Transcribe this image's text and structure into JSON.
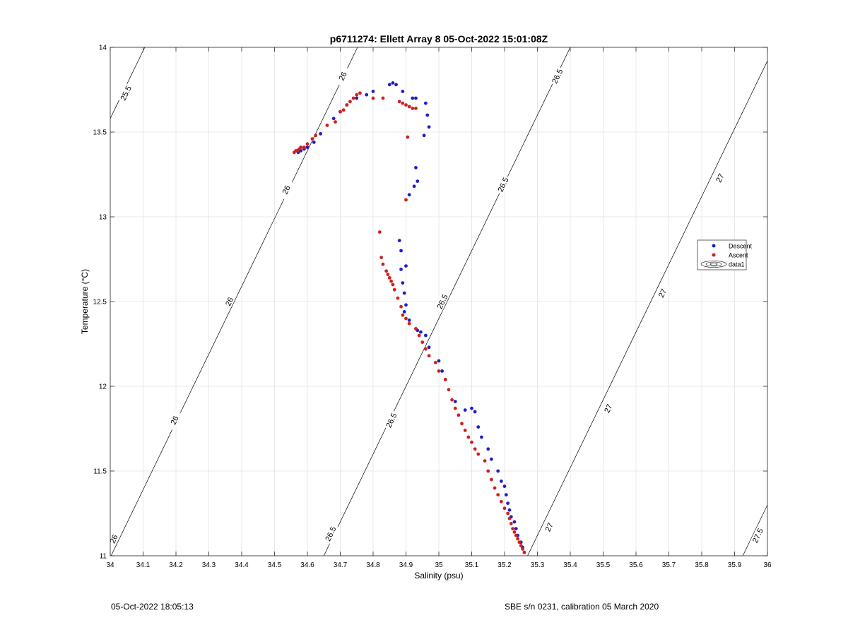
{
  "chart_data": {
    "type": "scatter",
    "title": "p6711274: Ellett Array 8 05-Oct-2022 15:01:08Z",
    "xlabel": "Salinity (psu)",
    "ylabel": "Temperature (°C)",
    "xlim": [
      34,
      36
    ],
    "ylim": [
      11,
      14
    ],
    "x_ticks": [
      "34",
      "34.1",
      "34.2",
      "34.3",
      "34.4",
      "34.5",
      "34.6",
      "34.7",
      "34.8",
      "34.9",
      "35",
      "35.1",
      "35.2",
      "35.3",
      "35.4",
      "35.5",
      "35.6",
      "35.7",
      "35.8",
      "35.9",
      "36"
    ],
    "y_ticks": [
      "11",
      "11.5",
      "12",
      "12.5",
      "13",
      "13.5",
      "14"
    ],
    "grid": true,
    "legend": {
      "placement": "right",
      "entries": [
        "Descent",
        "Ascent",
        "data1"
      ]
    },
    "colors": {
      "descent": "#1f1fc8",
      "ascent": "#d21e1e",
      "contour": "#000000",
      "grid": "#e3e3e3"
    },
    "contour_label_positions": [
      {
        "label": "25.5",
        "x": 34.047,
        "y": 13.73
      },
      {
        "label": "26",
        "x": 34.01,
        "y": 11.1
      },
      {
        "label": "26",
        "x": 34.195,
        "y": 11.8
      },
      {
        "label": "26",
        "x": 34.362,
        "y": 12.5
      },
      {
        "label": "26",
        "x": 34.535,
        "y": 13.16
      },
      {
        "label": "26",
        "x": 34.707,
        "y": 13.83
      },
      {
        "label": "26.5",
        "x": 34.67,
        "y": 11.13
      },
      {
        "label": "26.5",
        "x": 34.855,
        "y": 11.8
      },
      {
        "label": "26.5",
        "x": 35.01,
        "y": 12.5
      },
      {
        "label": "26.5",
        "x": 35.195,
        "y": 13.19
      },
      {
        "label": "26.5",
        "x": 35.36,
        "y": 13.83
      },
      {
        "label": "27",
        "x": 35.335,
        "y": 11.17
      },
      {
        "label": "27",
        "x": 35.515,
        "y": 11.87
      },
      {
        "label": "27",
        "x": 35.68,
        "y": 12.55
      },
      {
        "label": "27",
        "x": 35.855,
        "y": 13.23
      },
      {
        "label": "27.5",
        "x": 35.97,
        "y": 11.12
      }
    ],
    "series": [
      {
        "name": "Descent",
        "x": [
          34.572,
          34.58,
          34.59,
          34.6,
          34.62,
          34.64,
          34.68,
          34.7,
          34.72,
          34.75,
          34.78,
          34.8,
          34.85,
          34.86,
          34.87,
          34.89,
          34.92,
          34.93,
          34.96,
          34.965,
          34.97,
          34.955,
          34.93,
          34.935,
          34.925,
          34.91,
          34.88,
          34.885,
          34.9,
          34.885,
          34.89,
          34.895,
          34.9,
          34.895,
          34.91,
          34.935,
          34.945,
          34.96,
          34.97,
          35.0,
          35.01,
          35.02,
          35.05,
          35.08,
          35.1,
          35.11,
          35.12,
          35.13,
          35.15,
          35.16,
          35.18,
          35.19,
          35.2,
          35.205,
          35.21,
          35.215,
          35.22,
          35.23,
          35.235,
          35.24,
          35.25,
          35.255,
          35.26
        ],
        "y": [
          13.38,
          13.39,
          13.4,
          13.41,
          13.44,
          13.49,
          13.58,
          13.62,
          13.66,
          13.7,
          13.72,
          13.74,
          13.78,
          13.79,
          13.78,
          13.74,
          13.7,
          13.7,
          13.67,
          13.6,
          13.53,
          13.48,
          13.29,
          13.21,
          13.18,
          13.13,
          12.86,
          12.8,
          12.71,
          12.69,
          12.61,
          12.55,
          12.48,
          12.44,
          12.39,
          12.33,
          12.32,
          12.3,
          12.23,
          12.15,
          12.09,
          12.04,
          11.91,
          11.86,
          11.87,
          11.85,
          11.76,
          11.7,
          11.63,
          11.57,
          11.5,
          11.44,
          11.41,
          11.36,
          11.31,
          11.27,
          11.23,
          11.2,
          11.16,
          11.12,
          11.08,
          11.05,
          11.02
        ]
      },
      {
        "name": "Ascent",
        "x": [
          34.56,
          34.565,
          34.57,
          34.575,
          34.58,
          34.59,
          34.6,
          34.615,
          34.625,
          34.66,
          34.685,
          34.7,
          34.71,
          34.72,
          34.73,
          34.74,
          34.75,
          34.76,
          34.8,
          34.83,
          34.88,
          34.89,
          34.9,
          34.91,
          34.92,
          34.93,
          34.905,
          34.9,
          34.82,
          34.825,
          34.83,
          34.84,
          34.845,
          34.85,
          34.855,
          34.86,
          34.865,
          34.875,
          34.885,
          34.89,
          34.9,
          34.91,
          34.93,
          34.94,
          34.95,
          34.96,
          34.97,
          34.99,
          35.0,
          35.02,
          35.03,
          35.04,
          35.05,
          35.06,
          35.07,
          35.08,
          35.09,
          35.1,
          35.11,
          35.12,
          35.14,
          35.15,
          35.16,
          35.17,
          35.18,
          35.19,
          35.2,
          35.21,
          35.215,
          35.22,
          35.225,
          35.23,
          35.235,
          35.24,
          35.245,
          35.25,
          35.255,
          35.26
        ],
        "y": [
          13.38,
          13.39,
          13.39,
          13.4,
          13.41,
          13.41,
          13.43,
          13.46,
          13.48,
          13.54,
          13.56,
          13.62,
          13.63,
          13.66,
          13.68,
          13.7,
          13.72,
          13.73,
          13.7,
          13.7,
          13.68,
          13.67,
          13.66,
          13.65,
          13.64,
          13.64,
          13.47,
          13.1,
          12.91,
          12.76,
          12.72,
          12.68,
          12.66,
          12.64,
          12.62,
          12.6,
          12.57,
          12.52,
          12.47,
          12.42,
          12.4,
          12.37,
          12.34,
          12.3,
          12.26,
          12.22,
          12.18,
          12.14,
          12.09,
          12.04,
          11.98,
          11.92,
          11.87,
          11.83,
          11.78,
          11.74,
          11.7,
          11.67,
          11.63,
          11.6,
          11.56,
          11.5,
          11.45,
          11.4,
          11.36,
          11.32,
          11.28,
          11.25,
          11.22,
          11.19,
          11.16,
          11.14,
          11.12,
          11.1,
          11.08,
          11.06,
          11.04,
          11.02
        ]
      }
    ]
  },
  "footer": {
    "left": "05-Oct-2022 18:05:13",
    "right": "SBE s/n 0231, calibration 05 March 2020"
  }
}
